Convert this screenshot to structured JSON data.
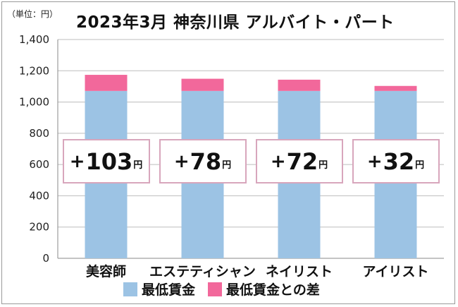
{
  "unit_label": "（単位：円）",
  "title": "2023年3月 神奈川県 アルバイト・パート",
  "colors": {
    "min_wage": "#9cc3e4",
    "diff": "#f2689b",
    "box_border": "#d8a6bc",
    "grid": "#bdbdbd"
  },
  "chart_data": {
    "type": "bar",
    "stacked": true,
    "categories": [
      "美容師",
      "エステティシャン",
      "ネイリスト",
      "アイリスト"
    ],
    "series": [
      {
        "name": "最低賃金",
        "values": [
          1071,
          1071,
          1071,
          1071
        ]
      },
      {
        "name": "最低賃金との差",
        "values": [
          103,
          78,
          72,
          32
        ]
      }
    ],
    "ylim": [
      0,
      1400
    ],
    "yticks": [
      "0",
      "200",
      "400",
      "600",
      "800",
      "1,000",
      "1,200",
      "1,400"
    ],
    "grid": true,
    "legend_position": "bottom",
    "annotations": [
      {
        "sign": "+",
        "value": "103",
        "unit": "円"
      },
      {
        "sign": "+",
        "value": "78",
        "unit": "円"
      },
      {
        "sign": "+",
        "value": "72",
        "unit": "円"
      },
      {
        "sign": "+",
        "value": "32",
        "unit": "円"
      }
    ]
  }
}
